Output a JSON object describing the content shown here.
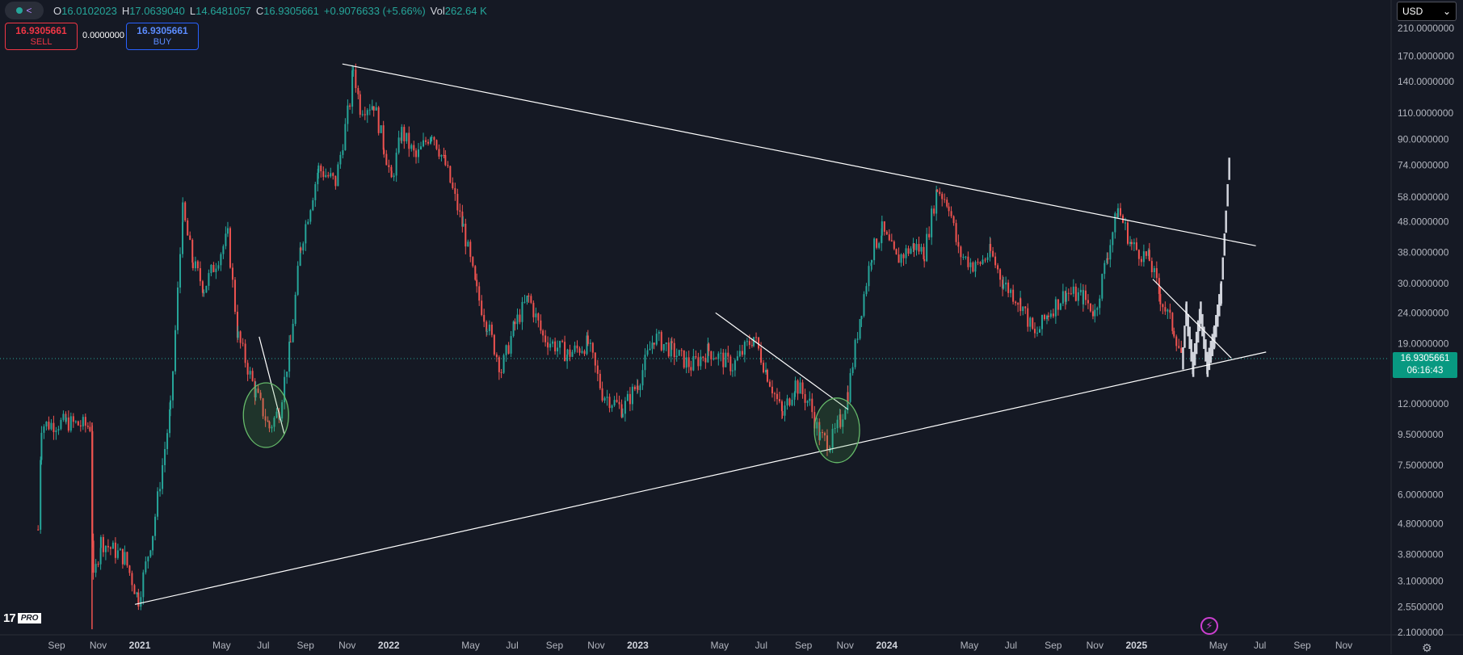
{
  "header": {
    "open_label": "O",
    "open_value": "16.0102023",
    "high_label": "H",
    "high_value": "17.0639040",
    "low_label": "L",
    "low_value": "14.6481057",
    "close_label": "C",
    "close_value": "16.9305661",
    "change": "+0.9076633 (+5.66%)",
    "vol_label": "Vol",
    "vol_value": "262.64 K"
  },
  "trade": {
    "sell_price": "16.9305661",
    "sell_label": "SELL",
    "buy_price": "16.9305661",
    "buy_label": "BUY",
    "spread": "0.0000000"
  },
  "currency": {
    "value": "USD",
    "chevron": "⌄"
  },
  "last_price": {
    "value": "16.9305661",
    "countdown": "06:16:43"
  },
  "colors": {
    "up": "#26a69a",
    "down": "#ef5350",
    "background": "#151924",
    "drawing": "#ffffff"
  },
  "icons": [
    "symbol-dot-icon",
    "share-icon",
    "chevron-down-icon",
    "tradingview-logo-icon",
    "bolt-icon",
    "gear-icon"
  ],
  "logo": {
    "mark": "17",
    "badge": "PRO"
  },
  "chart_data": {
    "type": "candlestick",
    "scale": "log",
    "ylim": [
      2.1,
      210
    ],
    "y_ticks": [
      "210.0000000",
      "170.0000000",
      "140.0000000",
      "110.0000000",
      "90.0000000",
      "74.0000000",
      "58.0000000",
      "48.0000000",
      "38.0000000",
      "30.0000000",
      "24.0000000",
      "19.0000000",
      "12.0000000",
      "9.5000000",
      "7.5000000",
      "6.0000000",
      "4.8000000",
      "3.8000000",
      "3.1000000",
      "2.5500000",
      "2.1000000"
    ],
    "x_ticks": [
      "Sep",
      "Nov",
      "2021",
      "May",
      "Jul",
      "Sep",
      "Nov",
      "2022",
      "May",
      "Jul",
      "Sep",
      "Nov",
      "2023",
      "May",
      "Jul",
      "Sep",
      "Nov",
      "2024",
      "May",
      "Jul",
      "Sep",
      "Nov",
      "2025",
      "May",
      "Jul",
      "Sep",
      "Nov"
    ],
    "price_path": [
      {
        "t": "2020-08-05",
        "p": 4.6
      },
      {
        "t": "2020-08-10",
        "p": 10.2
      },
      {
        "t": "2020-09-15",
        "p": 10.4
      },
      {
        "t": "2020-10-20",
        "p": 10.1
      },
      {
        "t": "2020-10-25",
        "p": 3.1
      },
      {
        "t": "2020-11-05",
        "p": 4.2
      },
      {
        "t": "2020-12-10",
        "p": 3.7
      },
      {
        "t": "2020-12-30",
        "p": 2.7
      },
      {
        "t": "2021-01-20",
        "p": 4.5
      },
      {
        "t": "2021-02-15",
        "p": 11.5
      },
      {
        "t": "2021-03-05",
        "p": 52
      },
      {
        "t": "2021-03-20",
        "p": 35
      },
      {
        "t": "2021-04-05",
        "p": 29
      },
      {
        "t": "2021-05-10",
        "p": 43
      },
      {
        "t": "2021-05-25",
        "p": 20
      },
      {
        "t": "2021-06-20",
        "p": 13
      },
      {
        "t": "2021-07-10",
        "p": 10
      },
      {
        "t": "2021-07-25",
        "p": 11.5
      },
      {
        "t": "2021-08-10",
        "p": 19
      },
      {
        "t": "2021-08-25",
        "p": 40
      },
      {
        "t": "2021-09-20",
        "p": 72
      },
      {
        "t": "2021-10-15",
        "p": 65
      },
      {
        "t": "2021-11-05",
        "p": 120
      },
      {
        "t": "2021-11-10",
        "p": 155
      },
      {
        "t": "2021-11-20",
        "p": 115
      },
      {
        "t": "2021-12-10",
        "p": 118
      },
      {
        "t": "2021-12-25",
        "p": 85
      },
      {
        "t": "2022-01-05",
        "p": 66
      },
      {
        "t": "2022-01-20",
        "p": 95
      },
      {
        "t": "2022-02-10",
        "p": 78
      },
      {
        "t": "2022-03-05",
        "p": 96
      },
      {
        "t": "2022-03-25",
        "p": 74
      },
      {
        "t": "2022-04-20",
        "p": 46
      },
      {
        "t": "2022-05-10",
        "p": 28
      },
      {
        "t": "2022-05-25",
        "p": 22
      },
      {
        "t": "2022-06-15",
        "p": 15.5
      },
      {
        "t": "2022-07-05",
        "p": 22
      },
      {
        "t": "2022-07-25",
        "p": 27
      },
      {
        "t": "2022-08-15",
        "p": 20
      },
      {
        "t": "2022-09-20",
        "p": 17.5
      },
      {
        "t": "2022-10-20",
        "p": 19
      },
      {
        "t": "2022-11-10",
        "p": 13
      },
      {
        "t": "2022-12-10",
        "p": 11.5
      },
      {
        "t": "2023-01-01",
        "p": 14
      },
      {
        "t": "2023-01-25",
        "p": 20
      },
      {
        "t": "2023-02-20",
        "p": 18
      },
      {
        "t": "2023-03-20",
        "p": 16
      },
      {
        "t": "2023-04-15",
        "p": 18
      },
      {
        "t": "2023-05-20",
        "p": 16
      },
      {
        "t": "2023-06-20",
        "p": 20
      },
      {
        "t": "2023-07-10",
        "p": 15
      },
      {
        "t": "2023-08-01",
        "p": 11
      },
      {
        "t": "2023-08-20",
        "p": 14
      },
      {
        "t": "2023-09-10",
        "p": 12
      },
      {
        "t": "2023-09-25",
        "p": 9.3
      },
      {
        "t": "2023-10-10",
        "p": 8.9
      },
      {
        "t": "2023-10-25",
        "p": 10.5
      },
      {
        "t": "2023-11-05",
        "p": 13
      },
      {
        "t": "2023-11-25",
        "p": 25
      },
      {
        "t": "2023-12-10",
        "p": 38
      },
      {
        "t": "2023-12-25",
        "p": 45
      },
      {
        "t": "2024-01-15",
        "p": 36
      },
      {
        "t": "2024-02-10",
        "p": 40
      },
      {
        "t": "2024-02-25",
        "p": 38
      },
      {
        "t": "2024-03-15",
        "p": 62
      },
      {
        "t": "2024-04-01",
        "p": 55
      },
      {
        "t": "2024-04-15",
        "p": 38
      },
      {
        "t": "2024-05-10",
        "p": 34
      },
      {
        "t": "2024-06-01",
        "p": 38
      },
      {
        "t": "2024-06-20",
        "p": 30
      },
      {
        "t": "2024-07-15",
        "p": 26
      },
      {
        "t": "2024-08-05",
        "p": 20
      },
      {
        "t": "2024-08-25",
        "p": 24
      },
      {
        "t": "2024-09-20",
        "p": 28
      },
      {
        "t": "2024-10-15",
        "p": 27
      },
      {
        "t": "2024-11-01",
        "p": 24
      },
      {
        "t": "2024-11-20",
        "p": 38
      },
      {
        "t": "2024-12-05",
        "p": 53
      },
      {
        "t": "2024-12-25",
        "p": 40
      },
      {
        "t": "2025-01-20",
        "p": 36
      },
      {
        "t": "2025-02-05",
        "p": 27
      },
      {
        "t": "2025-02-25",
        "p": 21
      },
      {
        "t": "2025-03-10",
        "p": 16.93
      }
    ],
    "projection": [
      {
        "t": "2025-03-15",
        "p": 24
      },
      {
        "t": "2025-03-25",
        "p": 16
      },
      {
        "t": "2025-04-05",
        "p": 24
      },
      {
        "t": "2025-04-15",
        "p": 16
      },
      {
        "t": "2025-04-25",
        "p": 20
      },
      {
        "t": "2025-05-05",
        "p": 28
      },
      {
        "t": "2025-05-12",
        "p": 48
      },
      {
        "t": "2025-05-18",
        "p": 80
      }
    ],
    "trendlines": [
      {
        "name": "upper-trendline",
        "from": {
          "t": "2021-10-25",
          "p": 160
        },
        "to": {
          "t": "2025-06-25",
          "p": 40
        }
      },
      {
        "name": "lower-trendline",
        "from": {
          "t": "2020-12-25",
          "p": 2.6
        },
        "to": {
          "t": "2025-07-10",
          "p": 17.8
        }
      },
      {
        "name": "downtrend-2021",
        "from": {
          "t": "2021-06-25",
          "p": 20
        },
        "to": {
          "t": "2021-08-01",
          "p": 9.5
        }
      },
      {
        "name": "downtrend-2023",
        "from": {
          "t": "2023-04-25",
          "p": 24
        },
        "to": {
          "t": "2023-11-05",
          "p": 11.5
        }
      },
      {
        "name": "downtrend-2025",
        "from": {
          "t": "2025-01-25",
          "p": 31
        },
        "to": {
          "t": "2025-05-20",
          "p": 17
        }
      }
    ],
    "circles": [
      {
        "name": "circle-2021",
        "t": "2021-07-05",
        "p": 11
      },
      {
        "name": "circle-2023",
        "t": "2023-10-20",
        "p": 9.8
      }
    ],
    "last_price_line": 16.93
  }
}
